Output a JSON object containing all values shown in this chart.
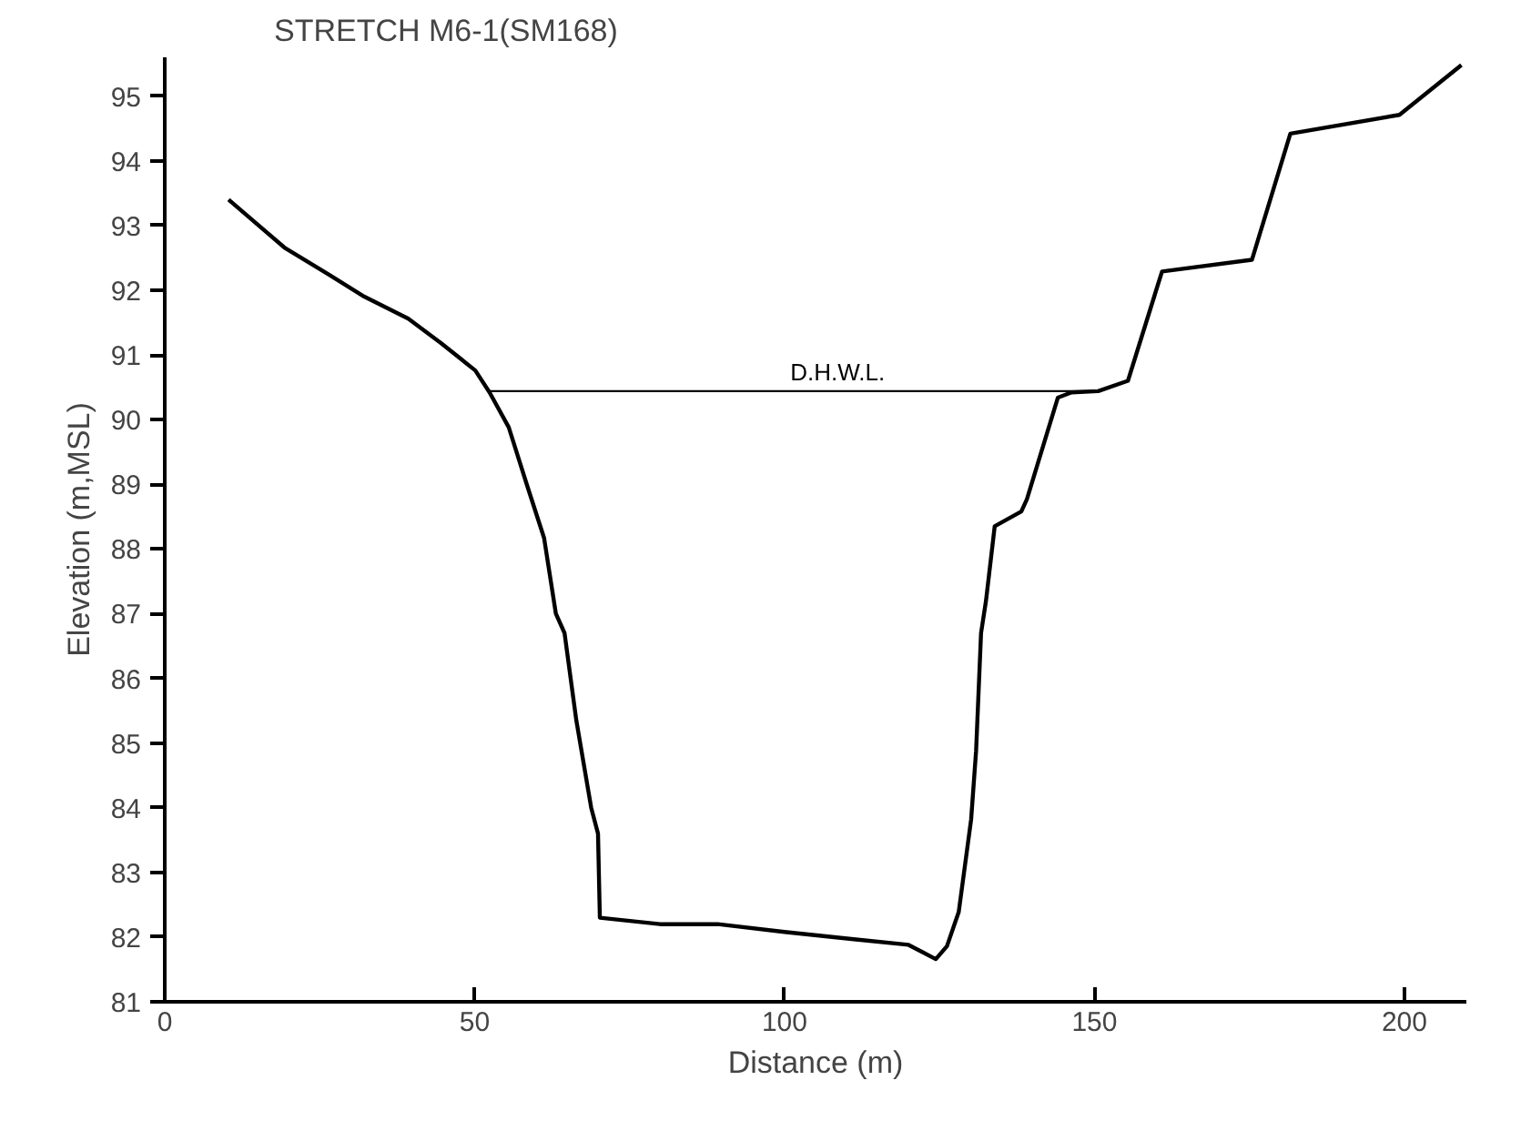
{
  "chart_data": {
    "type": "line",
    "title": "STRETCH M6-1(SM168)",
    "xlabel": "Distance (m)",
    "ylabel": "Elevation (m,MSL)",
    "series": [
      {
        "color": "#000000",
        "x": [
          10.3,
          19.3,
          26.5,
          32.2,
          39.3,
          44.6,
          50.1,
          52.4,
          55.5,
          58.4,
          61.2,
          63.1,
          64.5,
          66.4,
          68.8,
          69.9,
          70.2,
          79.9,
          89.2,
          100,
          110.8,
          120,
          124.4,
          126.2,
          128.1,
          130.1,
          130.9,
          131.7,
          132.5,
          133.9,
          138.2,
          139.1,
          144.1,
          146.3,
          150.6,
          155.4,
          160.9,
          175.4,
          181.6,
          199.2,
          209.2
        ],
        "values": [
          93.4,
          92.66,
          92.24,
          91.9,
          91.56,
          91.18,
          90.76,
          90.42,
          89.88,
          89.0,
          88.17,
          87.0,
          86.7,
          85.35,
          84.0,
          83.6,
          82.3,
          82.2,
          82.2,
          82.08,
          81.97,
          81.88,
          81.66,
          81.86,
          82.39,
          83.82,
          84.88,
          86.7,
          87.2,
          88.35,
          88.58,
          88.77,
          90.34,
          90.42,
          90.44,
          90.6,
          92.29,
          92.47,
          94.42,
          94.71,
          95.48
        ]
      },
      {
        "name": "D.H.W.L.",
        "color": "#000000",
        "x": [
          52.4,
          150.6
        ],
        "values": [
          90.44,
          90.44
        ]
      }
    ],
    "xlim": [
      0,
      210
    ],
    "xticks": [
      0,
      50,
      100,
      150,
      200
    ],
    "ylim": [
      81,
      95.6
    ],
    "yticks": [
      81,
      82,
      83,
      84,
      85,
      86,
      87,
      88,
      89,
      90,
      91,
      92,
      93,
      94,
      95
    ],
    "grid": false,
    "legend": false,
    "marker": "none",
    "line_style": "solid"
  }
}
